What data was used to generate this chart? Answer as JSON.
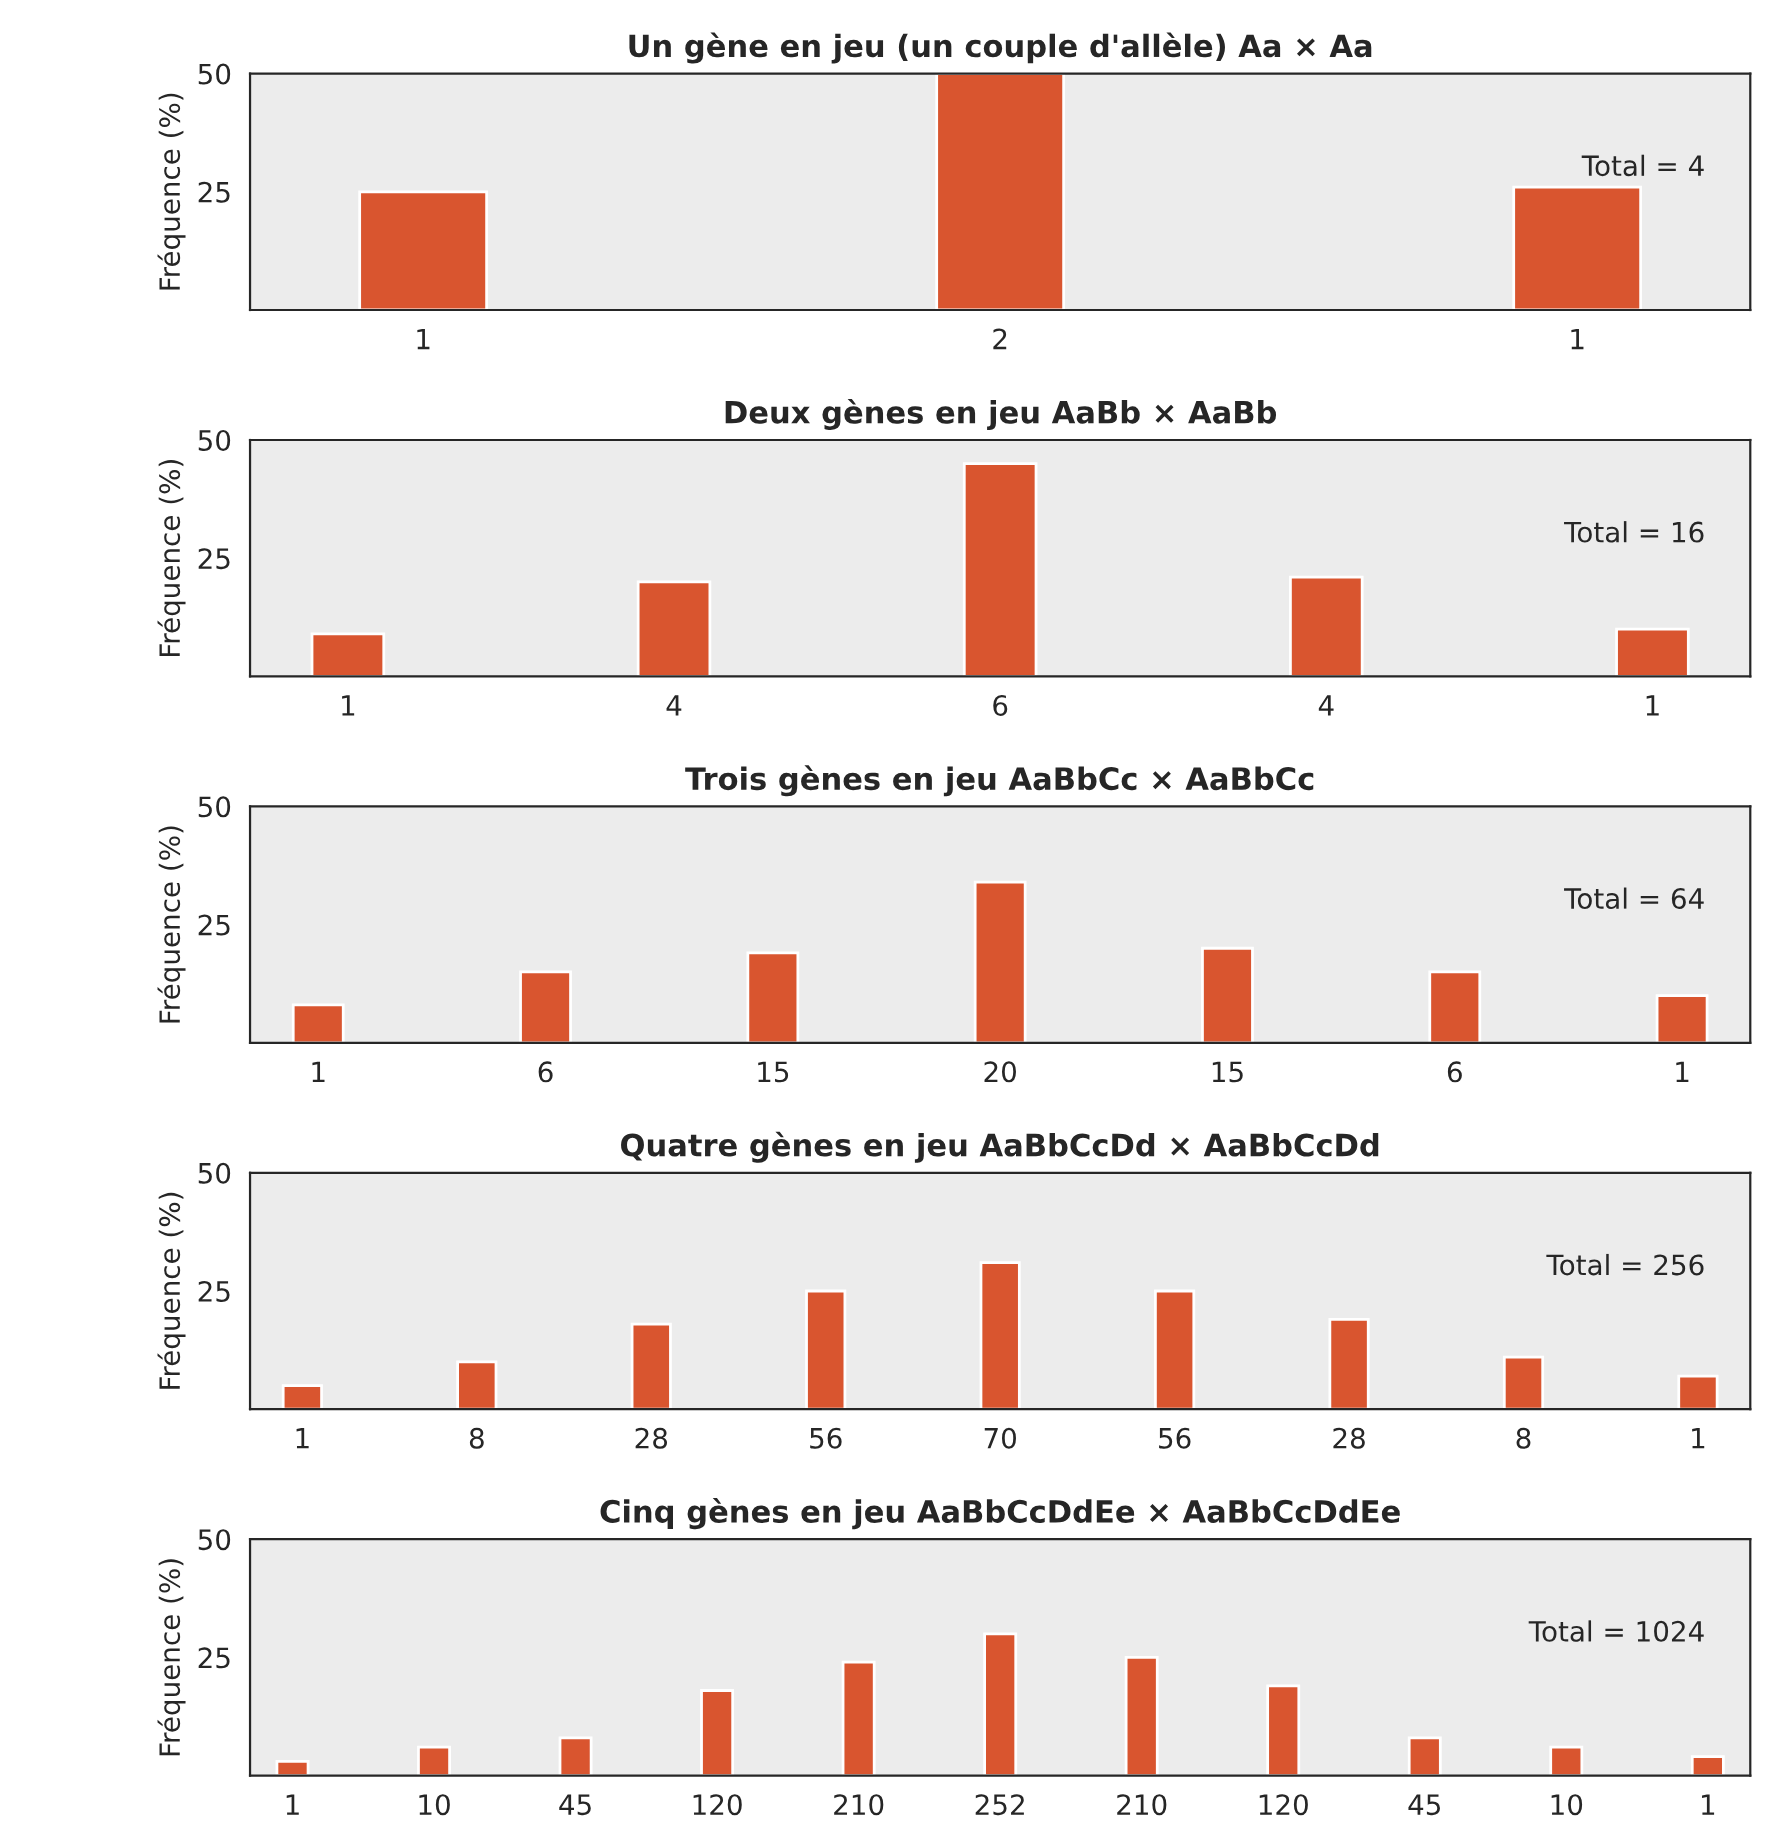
{
  "chart_data": [
    {
      "type": "bar",
      "title": "Un gène en jeu (un couple d'allèle) Aa × Aa",
      "ylabel": "Fréquence (%)",
      "categories": [
        "1",
        "2",
        "1"
      ],
      "values": [
        25,
        50,
        26
      ],
      "color": "#d9552f",
      "ylim": [
        0,
        50
      ],
      "yticks": [
        25,
        50
      ],
      "grid": false,
      "annotations": [
        "Total = 4"
      ]
    },
    {
      "type": "bar",
      "title": "Deux gènes en jeu AaBb × AaBb",
      "ylabel": "Fréquence (%)",
      "categories": [
        "1",
        "4",
        "6",
        "4",
        "1"
      ],
      "values": [
        9,
        20,
        45,
        21,
        10
      ],
      "color": "#d9552f",
      "ylim": [
        0,
        50
      ],
      "yticks": [
        25,
        50
      ],
      "grid": false,
      "annotations": [
        "Total = 16"
      ]
    },
    {
      "type": "bar",
      "title": "Trois gènes en jeu AaBbCc × AaBbCc",
      "ylabel": "Fréquence (%)",
      "categories": [
        "1",
        "6",
        "15",
        "20",
        "15",
        "6",
        "1"
      ],
      "values": [
        8,
        15,
        19,
        34,
        20,
        15,
        10
      ],
      "color": "#d9552f",
      "ylim": [
        0,
        50
      ],
      "yticks": [
        25,
        50
      ],
      "grid": false,
      "annotations": [
        "Total = 64"
      ]
    },
    {
      "type": "bar",
      "title": "Quatre gènes en jeu AaBbCcDd × AaBbCcDd",
      "ylabel": "Fréquence (%)",
      "categories": [
        "1",
        "8",
        "28",
        "56",
        "70",
        "56",
        "28",
        "8",
        "1"
      ],
      "values": [
        5,
        10,
        18,
        25,
        31,
        25,
        19,
        11,
        7
      ],
      "color": "#d9552f",
      "ylim": [
        0,
        50
      ],
      "yticks": [
        25,
        50
      ],
      "grid": false,
      "annotations": [
        "Total = 256"
      ]
    },
    {
      "type": "bar",
      "title": "Cinq gènes en jeu AaBbCcDdEe × AaBbCcDdEe",
      "ylabel": "Fréquence (%)",
      "categories": [
        "1",
        "10",
        "45",
        "120",
        "210",
        "252",
        "210",
        "120",
        "45",
        "10",
        "1"
      ],
      "values": [
        3,
        6,
        8,
        18,
        24,
        30,
        25,
        19,
        8,
        6,
        4
      ],
      "color": "#d9552f",
      "ylim": [
        0,
        50
      ],
      "yticks": [
        25,
        50
      ],
      "grid": false,
      "annotations": [
        "Total = 1024"
      ]
    }
  ]
}
